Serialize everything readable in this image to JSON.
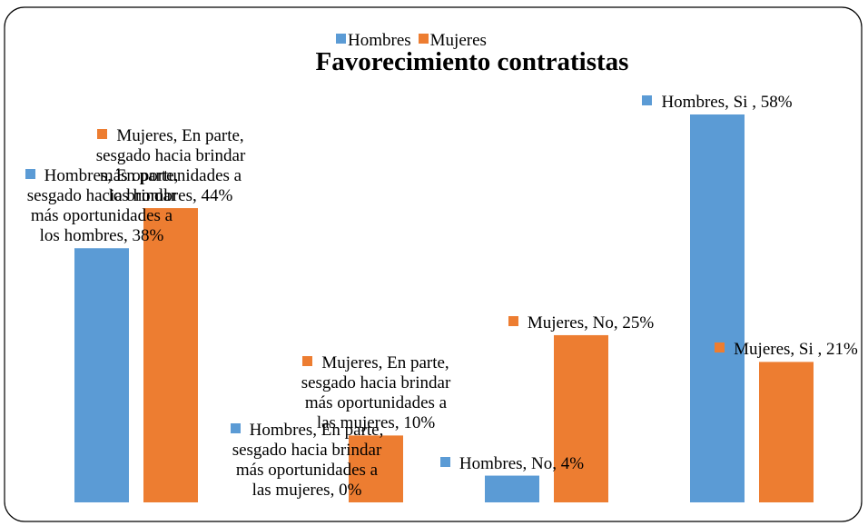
{
  "chart_data": {
    "type": "bar",
    "title": "Favorecimiento contratistas",
    "series": [
      {
        "name": "Hombres",
        "color": "#5b9bd5",
        "values": [
          38,
          0,
          4,
          58
        ],
        "value_labels": [
          "Hombres, En parte, sesgado hacia brindar más oportunidades a los hombres, 38%",
          "Hombres, En parte, sesgado hacia brindar más oportunidades a las mujeres, 0%",
          "Hombres, No, 4%",
          "Hombres, Si , 58%"
        ]
      },
      {
        "name": "Mujeres",
        "color": "#ed7d31",
        "values": [
          44,
          10,
          25,
          21
        ],
        "value_labels": [
          "Mujeres, En parte, sesgado hacia brindar más oportunidades a los hombres, 44%",
          "Mujeres, En parte, sesgado hacia brindar más oportunidades a las mujeres, 10%",
          "Mujeres, No, 25%",
          "Mujeres, Si , 21%"
        ]
      }
    ],
    "legend": "top"
  }
}
